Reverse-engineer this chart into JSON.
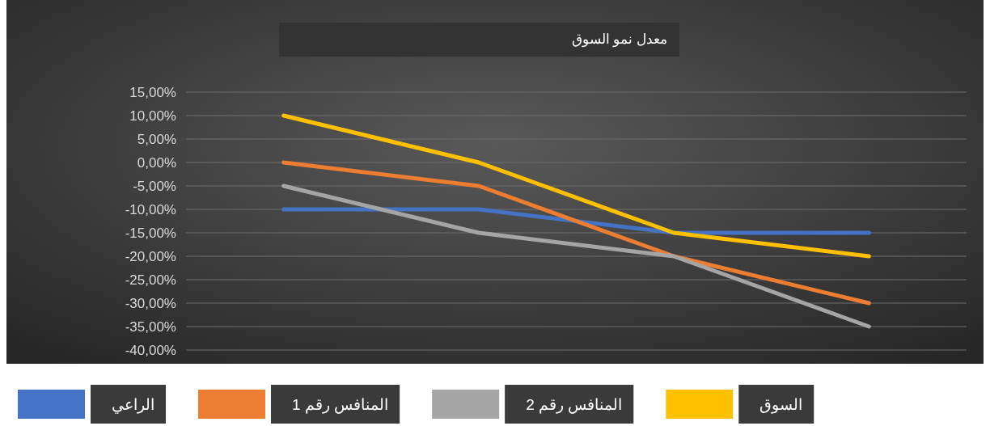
{
  "chart_data": {
    "type": "line",
    "title": "معدل نمو السوق",
    "categories": [
      null,
      null,
      null,
      null
    ],
    "series": [
      {
        "name": "الراعي",
        "color": "#4472c4",
        "values": [
          -10,
          -10,
          -15,
          -15
        ]
      },
      {
        "name": "المنافس رقم 1",
        "color": "#ed7d31",
        "values": [
          0,
          -5,
          -20,
          -30
        ]
      },
      {
        "name": "المنافس رقم 2",
        "color": "#a5a5a5",
        "values": [
          -5,
          -15,
          -20,
          -35
        ]
      },
      {
        "name": "السوق",
        "color": "#ffc000",
        "values": [
          10,
          0,
          -15,
          -20
        ]
      }
    ],
    "ylim": [
      -40,
      15
    ],
    "yticks": [
      {
        "value": -40,
        "label": "-40,00%"
      },
      {
        "value": -35,
        "label": "-35,00%"
      },
      {
        "value": -30,
        "label": "-30,00%"
      },
      {
        "value": -25,
        "label": "-25,00%"
      },
      {
        "value": -20,
        "label": "-20,00%"
      },
      {
        "value": -15,
        "label": "-15,00%"
      },
      {
        "value": -10,
        "label": "-10,00%"
      },
      {
        "value": -5,
        "label": "-5,00%"
      },
      {
        "value": 0,
        "label": "0,00%"
      },
      {
        "value": 5,
        "label": "5,00%"
      },
      {
        "value": 10,
        "label": "10,00%"
      },
      {
        "value": 15,
        "label": "15,00%"
      }
    ],
    "grid": "y",
    "legend": "bottom"
  }
}
